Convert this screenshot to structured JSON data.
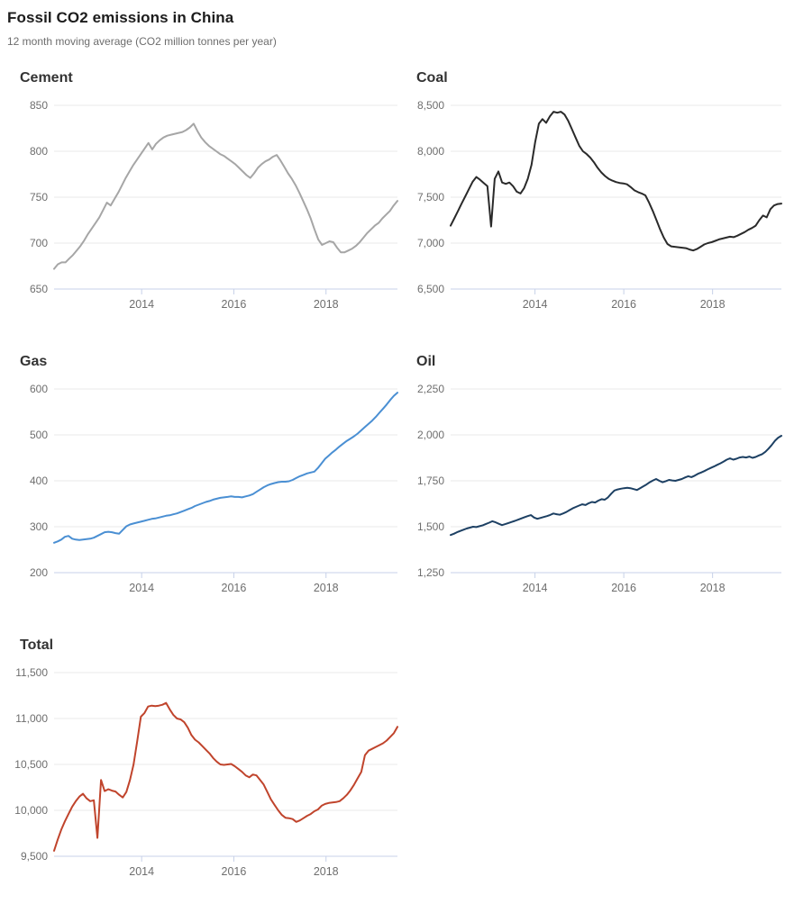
{
  "header": {
    "title": "Fossil CO2 emissions in China",
    "subtitle": "12 month moving average (CO2 million tonnes per year)"
  },
  "palette": {
    "gridline": "#e8e8e8",
    "baseline": "#c7d1e8",
    "tick_label": "#6e6e6e",
    "heading": "#333333"
  },
  "chart_data": [
    {
      "type": "line",
      "title": "Cement",
      "color": "#a6a6a6",
      "x_range": [
        2012.1,
        2019.55
      ],
      "x_ticks": [
        2014,
        2016,
        2018
      ],
      "x_tick_labels": [
        "2014",
        "2016",
        "2018"
      ],
      "ylim": [
        650,
        850
      ],
      "y_ticks": [
        {
          "value": 850,
          "label": "850"
        },
        {
          "value": 800,
          "label": "800"
        },
        {
          "value": 750,
          "label": "750"
        },
        {
          "value": 700,
          "label": "700"
        },
        {
          "value": 650,
          "label": "650"
        }
      ],
      "values": [
        672,
        677,
        679,
        679,
        683,
        687,
        692,
        697,
        703,
        710,
        716,
        722,
        728,
        736,
        744,
        741,
        748,
        755,
        763,
        771,
        778,
        785,
        791,
        797,
        803,
        809,
        802,
        808,
        812,
        815,
        817,
        818,
        819,
        820,
        821,
        823,
        826,
        830,
        822,
        815,
        810,
        806,
        803,
        800,
        797,
        795,
        792,
        789,
        786,
        782,
        778,
        774,
        771,
        776,
        782,
        786,
        789,
        791,
        794,
        796,
        790,
        783,
        776,
        770,
        763,
        755,
        746,
        737,
        727,
        715,
        704,
        698,
        700,
        702,
        701,
        695,
        690,
        690,
        692,
        694,
        697,
        701,
        706,
        711,
        715,
        719,
        722,
        727,
        731,
        735,
        741,
        746
      ]
    },
    {
      "type": "line",
      "title": "Coal",
      "color": "#2a2a2a",
      "x_range": [
        2012.1,
        2019.55
      ],
      "x_ticks": [
        2014,
        2016,
        2018
      ],
      "x_tick_labels": [
        "2014",
        "2016",
        "2018"
      ],
      "ylim": [
        6500,
        8500
      ],
      "y_ticks": [
        {
          "value": 8500,
          "label": "8,500"
        },
        {
          "value": 8000,
          "label": "8,000"
        },
        {
          "value": 7500,
          "label": "7,500"
        },
        {
          "value": 7000,
          "label": "7,000"
        },
        {
          "value": 6500,
          "label": "6,500"
        }
      ],
      "values": [
        7190,
        7270,
        7350,
        7430,
        7510,
        7590,
        7670,
        7720,
        7690,
        7655,
        7620,
        7180,
        7700,
        7780,
        7660,
        7645,
        7660,
        7620,
        7560,
        7540,
        7600,
        7700,
        7850,
        8100,
        8300,
        8350,
        8310,
        8380,
        8430,
        8420,
        8430,
        8400,
        8330,
        8240,
        8150,
        8060,
        8000,
        7970,
        7930,
        7880,
        7820,
        7770,
        7730,
        7700,
        7680,
        7665,
        7655,
        7650,
        7640,
        7610,
        7575,
        7555,
        7540,
        7520,
        7440,
        7350,
        7250,
        7150,
        7060,
        6990,
        6965,
        6960,
        6955,
        6950,
        6945,
        6930,
        6920,
        6935,
        6960,
        6985,
        7000,
        7010,
        7025,
        7040,
        7050,
        7060,
        7070,
        7065,
        7080,
        7100,
        7120,
        7145,
        7165,
        7190,
        7250,
        7300,
        7280,
        7370,
        7410,
        7425,
        7430
      ]
    },
    {
      "type": "line",
      "title": "Gas",
      "color": "#4a8fd3",
      "x_range": [
        2012.1,
        2019.55
      ],
      "x_ticks": [
        2014,
        2016,
        2018
      ],
      "x_tick_labels": [
        "2014",
        "2016",
        "2018"
      ],
      "ylim": [
        200,
        600
      ],
      "y_ticks": [
        {
          "value": 600,
          "label": "600"
        },
        {
          "value": 500,
          "label": "500"
        },
        {
          "value": 400,
          "label": "400"
        },
        {
          "value": 300,
          "label": "300"
        },
        {
          "value": 200,
          "label": "200"
        }
      ],
      "values": [
        265,
        268,
        272,
        278,
        280,
        274,
        272,
        271,
        272,
        273,
        274,
        276,
        280,
        284,
        288,
        289,
        288,
        286,
        285,
        293,
        301,
        305,
        307,
        309,
        311,
        313,
        315,
        317,
        318,
        320,
        322,
        324,
        325,
        327,
        329,
        332,
        335,
        338,
        341,
        345,
        348,
        351,
        354,
        356,
        359,
        361,
        363,
        364,
        365,
        366,
        365,
        365,
        364,
        366,
        368,
        371,
        376,
        381,
        386,
        390,
        393,
        395,
        397,
        398,
        398,
        399,
        402,
        406,
        410,
        413,
        416,
        418,
        420,
        428,
        438,
        448,
        455,
        462,
        468,
        475,
        481,
        487,
        492,
        497,
        503,
        510,
        517,
        524,
        531,
        539,
        548,
        557,
        566,
        576,
        585,
        592
      ]
    },
    {
      "type": "line",
      "title": "Oil",
      "color": "#1d4063",
      "x_range": [
        2012.1,
        2019.55
      ],
      "x_ticks": [
        2014,
        2016,
        2018
      ],
      "x_tick_labels": [
        "2014",
        "2016",
        "2018"
      ],
      "ylim": [
        1250,
        2250
      ],
      "y_ticks": [
        {
          "value": 2250,
          "label": "2,250"
        },
        {
          "value": 2000,
          "label": "2,000"
        },
        {
          "value": 1750,
          "label": "1,750"
        },
        {
          "value": 1500,
          "label": "1,500"
        },
        {
          "value": 1250,
          "label": "1,250"
        }
      ],
      "values": [
        1455,
        1462,
        1470,
        1477,
        1484,
        1490,
        1495,
        1500,
        1498,
        1503,
        1508,
        1515,
        1522,
        1530,
        1524,
        1516,
        1509,
        1514,
        1520,
        1526,
        1532,
        1538,
        1545,
        1552,
        1558,
        1563,
        1550,
        1543,
        1548,
        1553,
        1558,
        1564,
        1572,
        1568,
        1565,
        1572,
        1580,
        1590,
        1600,
        1608,
        1615,
        1622,
        1618,
        1628,
        1635,
        1632,
        1642,
        1650,
        1647,
        1660,
        1680,
        1697,
        1703,
        1707,
        1710,
        1712,
        1710,
        1705,
        1700,
        1710,
        1720,
        1730,
        1742,
        1752,
        1760,
        1750,
        1742,
        1748,
        1755,
        1752,
        1750,
        1755,
        1760,
        1768,
        1775,
        1770,
        1778,
        1788,
        1795,
        1803,
        1812,
        1820,
        1828,
        1837,
        1845,
        1855,
        1865,
        1872,
        1865,
        1870,
        1877,
        1880,
        1877,
        1882,
        1875,
        1880,
        1888,
        1895,
        1908,
        1925,
        1945,
        1968,
        1985,
        1995
      ]
    },
    {
      "type": "line",
      "title": "Total",
      "color": "#c0442c",
      "x_range": [
        2012.1,
        2019.55
      ],
      "x_ticks": [
        2014,
        2016,
        2018
      ],
      "x_tick_labels": [
        "2014",
        "2016",
        "2018"
      ],
      "ylim": [
        9500,
        11500
      ],
      "y_ticks": [
        {
          "value": 11500,
          "label": "11,500"
        },
        {
          "value": 11000,
          "label": "11,000"
        },
        {
          "value": 10500,
          "label": "10,500"
        },
        {
          "value": 10000,
          "label": "10,000"
        },
        {
          "value": 9500,
          "label": "9,500"
        }
      ],
      "values": [
        9560,
        9680,
        9790,
        9880,
        9960,
        10040,
        10100,
        10150,
        10180,
        10130,
        10100,
        10110,
        9700,
        10330,
        10210,
        10230,
        10215,
        10205,
        10170,
        10140,
        10200,
        10330,
        10500,
        10750,
        11020,
        11060,
        11130,
        11140,
        11135,
        11140,
        11150,
        11170,
        11100,
        11040,
        11000,
        10990,
        10960,
        10900,
        10820,
        10770,
        10740,
        10700,
        10660,
        10620,
        10570,
        10530,
        10500,
        10495,
        10500,
        10505,
        10480,
        10450,
        10420,
        10380,
        10360,
        10390,
        10380,
        10330,
        10280,
        10200,
        10120,
        10060,
        10000,
        9950,
        9920,
        9915,
        9905,
        9875,
        9890,
        9915,
        9940,
        9960,
        9990,
        10010,
        10050,
        10070,
        10080,
        10085,
        10090,
        10100,
        10130,
        10170,
        10220,
        10280,
        10350,
        10420,
        10600,
        10650,
        10670,
        10690,
        10710,
        10730,
        10760,
        10800,
        10840,
        10910
      ]
    }
  ]
}
